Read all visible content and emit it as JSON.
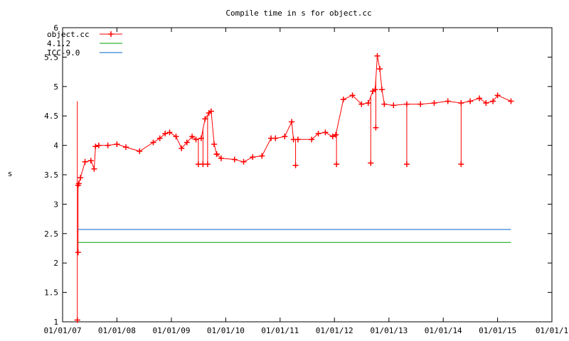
{
  "chart_data": {
    "type": "line",
    "title": "Compile time in s for object.cc",
    "xlabel": "",
    "ylabel": "s",
    "x_axis": {
      "type": "date",
      "ticks": [
        "2007-01-01",
        "2008-01-01",
        "2009-01-01",
        "2010-01-01",
        "2011-01-01",
        "2012-01-01",
        "2013-01-01",
        "2014-01-01",
        "2015-01-01",
        "2016-01-01"
      ],
      "tick_labels": [
        "01/01/07",
        "01/01/08",
        "01/01/09",
        "01/01/10",
        "01/01/11",
        "01/01/12",
        "01/01/13",
        "01/01/14",
        "01/01/15",
        "01/01/1"
      ],
      "range": [
        "2007-01-01",
        "2016-01-01"
      ]
    },
    "y_axis": {
      "range": [
        1,
        6
      ],
      "ticks": [
        1,
        1.5,
        2,
        2.5,
        3,
        3.5,
        4,
        4.5,
        5,
        5.5,
        6
      ],
      "tick_labels": [
        "1",
        "1.5",
        "2",
        "2.5",
        "3",
        "3.5",
        "4",
        "4.5",
        "5",
        "5.5",
        "6"
      ]
    },
    "grid": false,
    "legend_position": "top-left",
    "series": [
      {
        "name": "object.cc",
        "color": "#ff0000",
        "marker": "plus",
        "x": [
          "2007-04-15",
          "2007-04-20",
          "2007-05-01",
          "2007-06-01",
          "2007-07-10",
          "2007-08-01",
          "2007-08-10",
          "2007-09-01",
          "2007-11-01",
          "2008-01-01",
          "2008-03-01",
          "2008-06-01",
          "2008-09-01",
          "2008-10-15",
          "2008-11-20",
          "2008-12-20",
          "2009-02-01",
          "2009-03-10",
          "2009-04-15",
          "2009-05-20",
          "2009-06-15",
          "2009-07-20",
          "2009-08-15",
          "2009-09-10",
          "2009-09-25",
          "2009-10-15",
          "2009-11-01",
          "2009-12-01",
          "2010-03-01",
          "2010-05-01",
          "2010-07-01",
          "2010-09-01",
          "2010-11-01",
          "2010-12-01",
          "2011-02-01",
          "2011-03-20",
          "2011-04-01",
          "2011-05-01",
          "2011-08-01",
          "2011-09-15",
          "2011-11-01",
          "2011-12-20",
          "2012-01-10",
          "2012-03-01",
          "2012-05-01",
          "2012-07-01",
          "2012-08-15",
          "2012-09-15",
          "2012-10-01",
          "2012-10-15",
          "2012-11-01",
          "2012-11-15",
          "2012-12-01",
          "2013-02-01",
          "2013-05-01",
          "2013-08-01",
          "2013-11-01",
          "2014-02-01",
          "2014-05-01",
          "2014-07-01",
          "2014-09-01",
          "2014-10-15",
          "2014-12-01",
          "2015-01-01",
          "2015-04-01"
        ],
        "y": [
          3.32,
          3.35,
          3.45,
          3.72,
          3.74,
          3.6,
          3.98,
          4.0,
          4.0,
          4.02,
          3.97,
          3.9,
          4.05,
          4.12,
          4.2,
          4.22,
          4.15,
          3.95,
          4.05,
          4.15,
          4.1,
          4.12,
          4.45,
          4.55,
          4.58,
          4.02,
          3.85,
          3.78,
          3.76,
          3.72,
          3.8,
          3.82,
          4.12,
          4.12,
          4.15,
          4.4,
          4.1,
          4.1,
          4.1,
          4.2,
          4.22,
          4.15,
          4.18,
          4.78,
          4.85,
          4.7,
          4.72,
          4.92,
          4.95,
          5.52,
          5.3,
          4.95,
          4.7,
          4.68,
          4.7,
          4.7,
          4.72,
          4.75,
          4.72,
          4.75,
          4.8,
          4.72,
          4.75,
          4.85,
          4.75
        ]
      },
      {
        "name": "4.1.2",
        "color": "#00a000",
        "x": [
          "2007-04-15",
          "2015-04-01"
        ],
        "y": [
          2.35,
          2.35
        ]
      },
      {
        "name": "ICC-9.0",
        "color": "#0066cc",
        "x": [
          "2007-04-15",
          "2015-04-01"
        ],
        "y": [
          2.57,
          2.57
        ]
      }
    ],
    "spikes": {
      "series": "object.cc",
      "x": [
        "2007-04-10",
        "2007-04-15",
        "2009-07-01",
        "2009-08-01",
        "2009-09-01",
        "2009-11-01",
        "2011-04-15",
        "2012-01-15",
        "2012-09-01",
        "2012-10-05",
        "2013-05-01",
        "2014-05-01"
      ],
      "y": [
        1.03,
        2.18,
        3.68,
        3.68,
        3.68,
        3.85,
        3.66,
        3.68,
        3.7,
        4.3,
        3.68,
        3.68
      ]
    }
  }
}
